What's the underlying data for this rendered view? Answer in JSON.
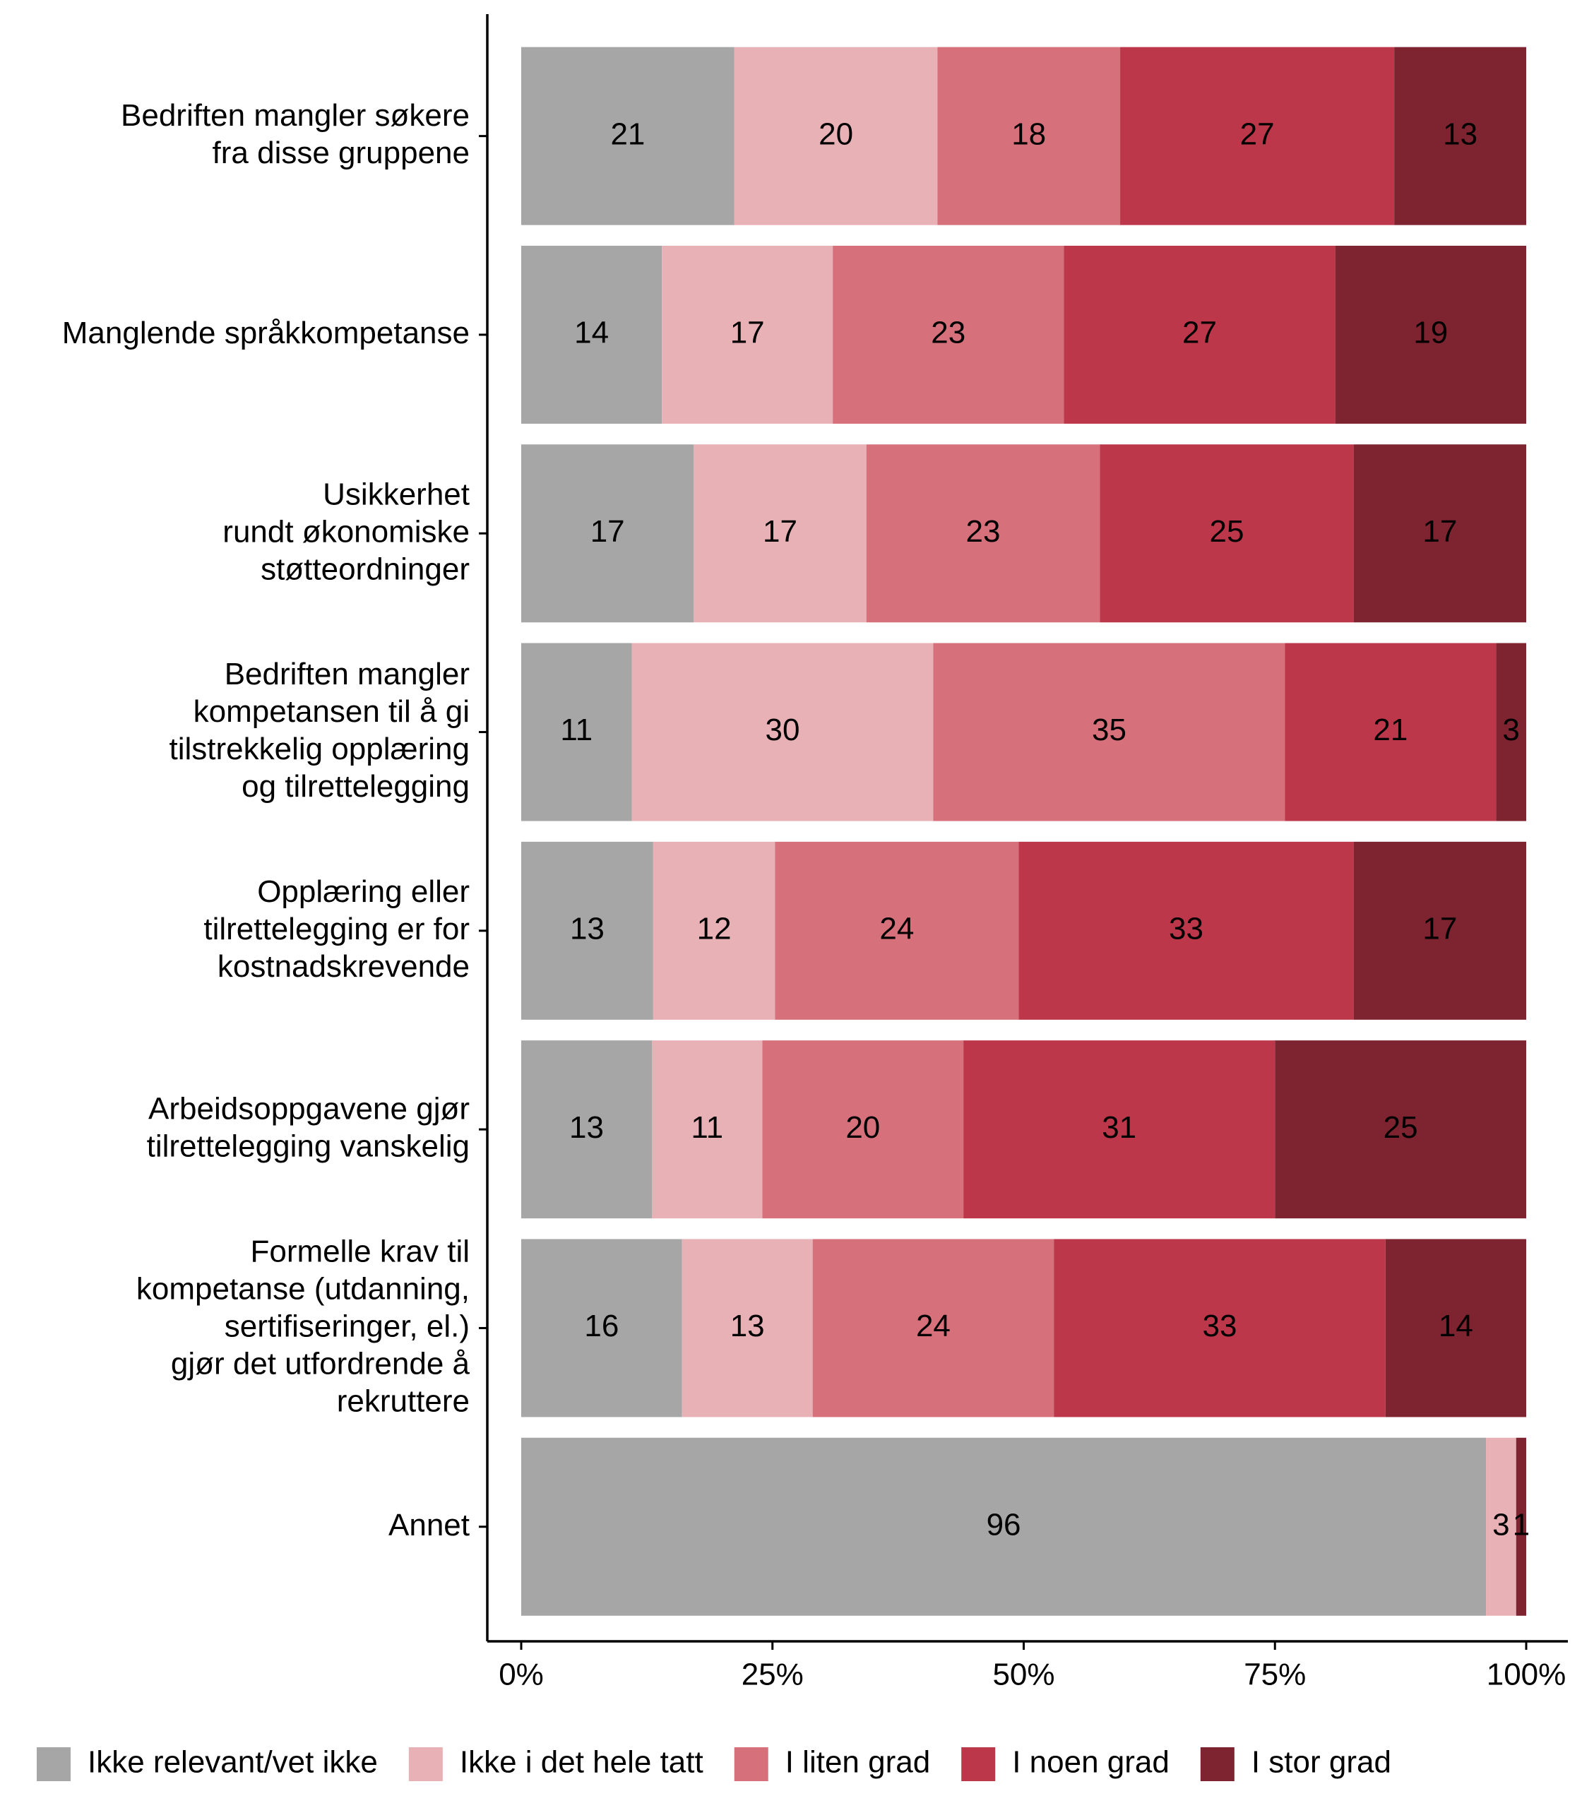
{
  "chart_data": {
    "type": "bar",
    "orientation": "horizontal",
    "stack": "fill",
    "categories": [
      "Bedriften mangler søkere\nfra disse gruppene",
      "Manglende språkkompetanse",
      "Usikkerhet\nrundt økonomiske\nstøtteordninger",
      "Bedriften mangler\nkompetansen til å gi\ntilstrekkelig opplæring\nog tilrettelegging",
      "Opplæring eller\ntilrettelegging er for\nkostnadskrevende",
      "Arbeidsoppgavene gjør\ntilrettelegging vanskelig",
      "Formelle krav til\nkompetanse (utdanning,\nsertifiseringer, el.)\ngjør det utfordrende å\nrekruttere",
      "Annet"
    ],
    "series": [
      {
        "name": "Ikke relevant/vet ikke",
        "color": "#a6a6a6",
        "label_color": "#000000",
        "values": [
          21,
          14,
          17,
          11,
          13,
          13,
          16,
          96
        ]
      },
      {
        "name": "Ikke i det hele tatt",
        "color": "#e8b1b6",
        "label_color": "#000000",
        "values": [
          20,
          17,
          17,
          30,
          12,
          11,
          13,
          3
        ]
      },
      {
        "name": "I liten grad",
        "color": "#d6707b",
        "label_color": "#000000",
        "values": [
          18,
          23,
          23,
          35,
          24,
          20,
          24,
          null
        ]
      },
      {
        "name": "I noen grad",
        "color": "#bd374a",
        "label_color": "#ffffff",
        "values": [
          27,
          27,
          25,
          21,
          33,
          31,
          33,
          null
        ]
      },
      {
        "name": "I stor grad",
        "color": "#7d2430",
        "label_color": "#ffffff",
        "values": [
          13,
          19,
          17,
          3,
          17,
          25,
          14,
          1
        ]
      }
    ],
    "xlim": [
      0,
      100
    ],
    "xticks": [
      {
        "value": 0,
        "label": "0%"
      },
      {
        "value": 25,
        "label": "25%"
      },
      {
        "value": 50,
        "label": "50%"
      },
      {
        "value": 75,
        "label": "75%"
      },
      {
        "value": 100,
        "label": "100%"
      }
    ],
    "legend": "bottom"
  }
}
